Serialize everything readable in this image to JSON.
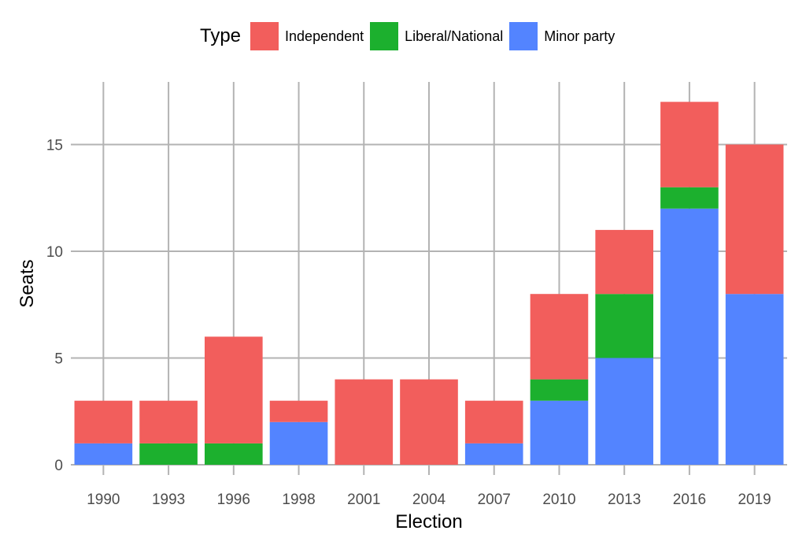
{
  "chart_data": {
    "type": "bar",
    "stacked": true,
    "categories": [
      "1990",
      "1993",
      "1996",
      "1998",
      "2001",
      "2004",
      "2007",
      "2010",
      "2013",
      "2016",
      "2019"
    ],
    "series": [
      {
        "name": "Minor party",
        "color": "#5384FF",
        "values": [
          1,
          0,
          0,
          2,
          0,
          0,
          1,
          3,
          5,
          12,
          8
        ]
      },
      {
        "name": "Liberal/National",
        "color": "#1CB02E",
        "values": [
          0,
          1,
          1,
          0,
          0,
          0,
          0,
          1,
          3,
          1,
          0
        ]
      },
      {
        "name": "Independent",
        "color": "#F25E5C",
        "values": [
          2,
          2,
          5,
          1,
          4,
          4,
          2,
          4,
          3,
          4,
          7
        ]
      }
    ],
    "xlabel": "Election",
    "ylabel": "Seats",
    "ylim": [
      0,
      17.8
    ],
    "yticks": [
      0,
      5,
      10,
      15
    ],
    "legend": {
      "title": "Type",
      "position": "top",
      "order": [
        "Independent",
        "Liberal/National",
        "Minor party"
      ]
    },
    "grid": true
  }
}
